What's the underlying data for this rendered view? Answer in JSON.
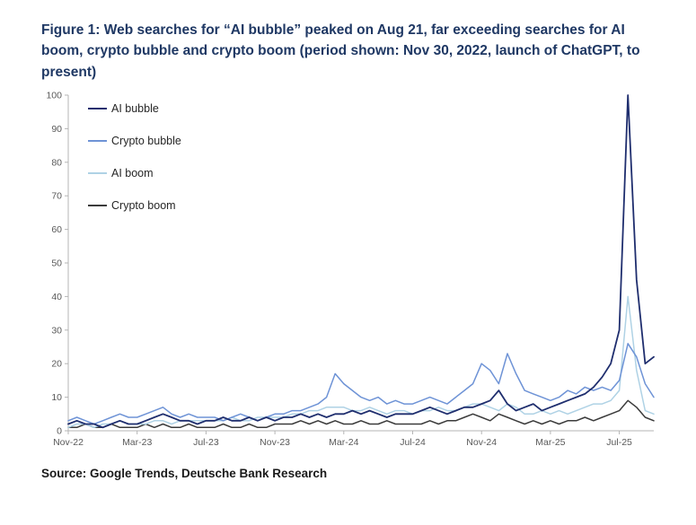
{
  "figure": {
    "title": "Figure 1: Web searches for “AI bubble” peaked on Aug 21, far exceeding searches for AI boom, crypto bubble and crypto boom (period shown: Nov 30, 2022, launch of ChatGPT, to present)",
    "source": "Source: Google Trends, Deutsche Bank Research",
    "title_color": "#1F3864"
  },
  "chart_data": {
    "type": "line",
    "title": "Web searches for AI bubble vs AI boom, crypto bubble, crypto boom (Google Trends index)",
    "xlabel": "",
    "ylabel": "",
    "ylim": [
      0,
      100
    ],
    "grid": false,
    "legend_position": "top-left inside plot",
    "y_ticks": [
      0,
      10,
      20,
      30,
      40,
      50,
      60,
      70,
      80,
      90,
      100
    ],
    "x_ticks": [
      {
        "label": "Nov-22",
        "index": 0
      },
      {
        "label": "Mar-23",
        "index": 8
      },
      {
        "label": "Jul-23",
        "index": 16
      },
      {
        "label": "Nov-23",
        "index": 24
      },
      {
        "label": "Mar-24",
        "index": 32
      },
      {
        "label": "Jul-24",
        "index": 40
      },
      {
        "label": "Nov-24",
        "index": 48
      },
      {
        "label": "Mar-25",
        "index": 56
      },
      {
        "label": "Jul-25",
        "index": 64
      }
    ],
    "series": [
      {
        "name": "AI bubble",
        "color": "#1F2E6E",
        "width": 1.8,
        "values": [
          2,
          3,
          2,
          2,
          1,
          2,
          3,
          2,
          2,
          3,
          4,
          5,
          4,
          3,
          3,
          2,
          3,
          3,
          4,
          3,
          3,
          4,
          3,
          4,
          3,
          4,
          4,
          5,
          4,
          5,
          4,
          5,
          5,
          6,
          5,
          6,
          5,
          4,
          5,
          5,
          5,
          6,
          7,
          6,
          5,
          6,
          7,
          7,
          8,
          9,
          12,
          8,
          6,
          7,
          8,
          6,
          7,
          8,
          9,
          10,
          11,
          13,
          16,
          20,
          30,
          100,
          45,
          20,
          22
        ]
      },
      {
        "name": "Crypto bubble",
        "color": "#6E93D6",
        "width": 1.5,
        "values": [
          3,
          4,
          3,
          2,
          3,
          4,
          5,
          4,
          4,
          5,
          6,
          7,
          5,
          4,
          5,
          4,
          4,
          4,
          3,
          4,
          5,
          4,
          3,
          4,
          5,
          5,
          6,
          6,
          7,
          8,
          10,
          17,
          14,
          12,
          10,
          9,
          10,
          8,
          9,
          8,
          8,
          9,
          10,
          9,
          8,
          10,
          12,
          14,
          20,
          18,
          14,
          23,
          17,
          12,
          11,
          10,
          9,
          10,
          12,
          11,
          13,
          12,
          13,
          12,
          15,
          26,
          22,
          14,
          10
        ]
      },
      {
        "name": "AI boom",
        "color": "#AFD2E5",
        "width": 1.5,
        "values": [
          1,
          2,
          2,
          1,
          2,
          2,
          3,
          2,
          2,
          2,
          3,
          3,
          2,
          3,
          3,
          3,
          3,
          3,
          3,
          4,
          3,
          3,
          4,
          4,
          4,
          4,
          5,
          5,
          6,
          6,
          7,
          7,
          7,
          6,
          6,
          7,
          6,
          5,
          6,
          6,
          5,
          6,
          6,
          7,
          6,
          6,
          7,
          8,
          8,
          7,
          6,
          8,
          7,
          5,
          5,
          6,
          5,
          6,
          5,
          6,
          7,
          8,
          8,
          9,
          12,
          40,
          18,
          6,
          5
        ]
      },
      {
        "name": "Crypto boom",
        "color": "#3B3B3B",
        "width": 1.5,
        "values": [
          1,
          1,
          2,
          1,
          1,
          2,
          1,
          1,
          1,
          2,
          1,
          2,
          1,
          1,
          2,
          1,
          1,
          1,
          2,
          1,
          1,
          2,
          1,
          1,
          2,
          2,
          2,
          3,
          2,
          3,
          2,
          3,
          2,
          2,
          3,
          2,
          2,
          3,
          2,
          2,
          2,
          2,
          3,
          2,
          3,
          3,
          4,
          5,
          4,
          3,
          5,
          4,
          3,
          2,
          3,
          2,
          3,
          2,
          3,
          3,
          4,
          3,
          4,
          5,
          6,
          9,
          7,
          4,
          3
        ]
      }
    ]
  }
}
